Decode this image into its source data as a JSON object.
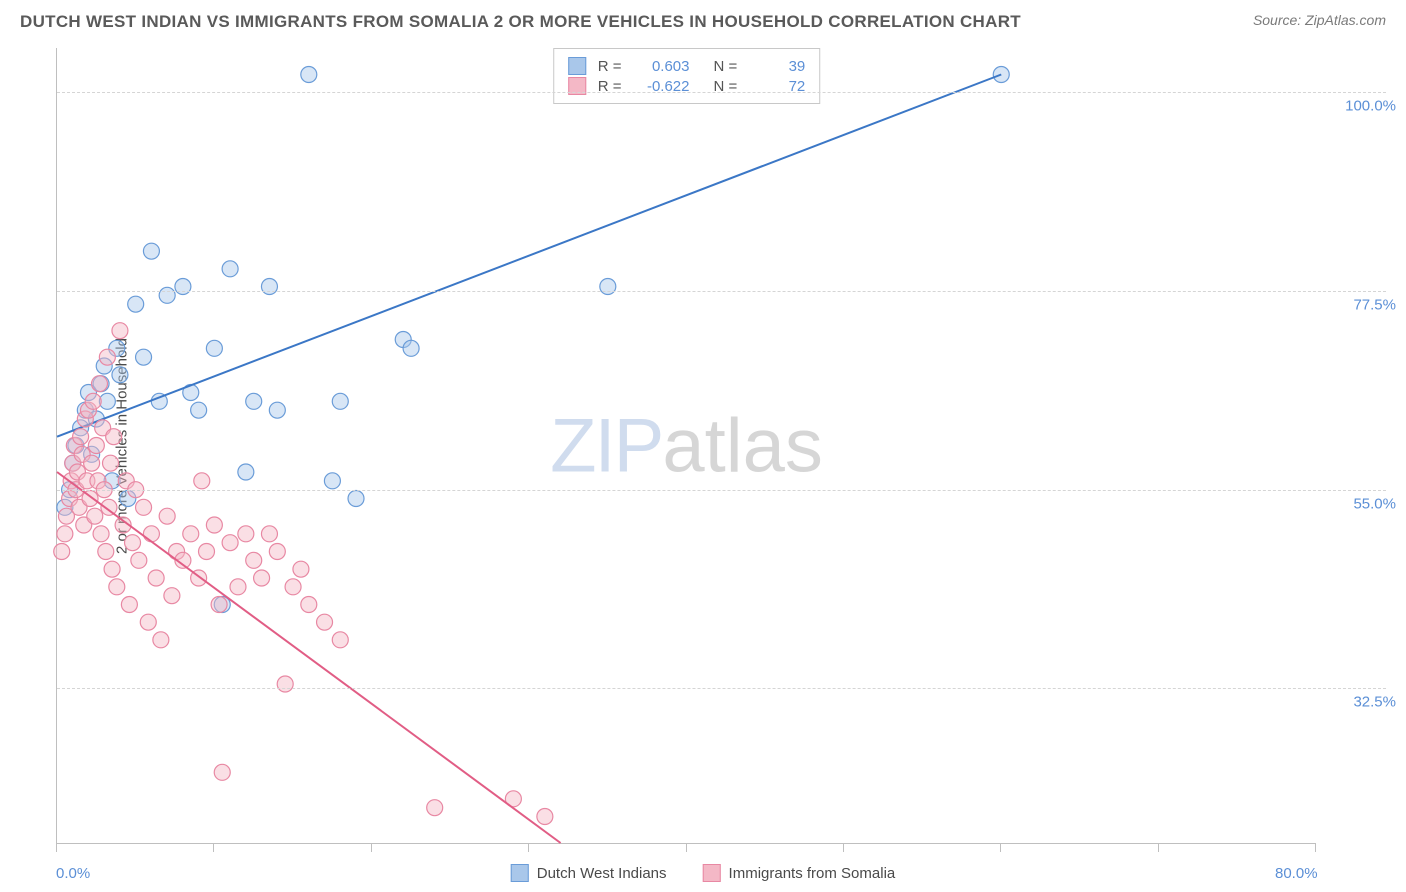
{
  "title": "DUTCH WEST INDIAN VS IMMIGRANTS FROM SOMALIA 2 OR MORE VEHICLES IN HOUSEHOLD CORRELATION CHART",
  "source": "Source: ZipAtlas.com",
  "ylabel": "2 or more Vehicles in Household",
  "watermark": {
    "zip": "ZIP",
    "atlas": "atlas"
  },
  "chart": {
    "type": "scatter",
    "xlim": [
      0,
      80
    ],
    "ylim": [
      15,
      105
    ],
    "background_color": "#ffffff",
    "grid_color": "#d5d5d5",
    "axis_color": "#bfbfbf",
    "y_gridlines": [
      32.5,
      55.0,
      77.5,
      100.0
    ],
    "y_tick_labels": [
      "32.5%",
      "55.0%",
      "77.5%",
      "100.0%"
    ],
    "y_tick_fontsize": 15,
    "y_tick_color": "#5b8fd6",
    "x_ticks": [
      0,
      10,
      20,
      30,
      40,
      50,
      60,
      70,
      80
    ],
    "x_axis_labels": [
      {
        "pos": 0,
        "text": "0.0%"
      },
      {
        "pos": 80,
        "text": "80.0%"
      }
    ],
    "marker_radius": 8,
    "marker_opacity": 0.45,
    "line_width": 2,
    "series": [
      {
        "name": "Dutch West Indians",
        "color_fill": "#a9c7ea",
        "color_stroke": "#6a9cd8",
        "line_color": "#3b77c6",
        "R": "0.603",
        "N": "39",
        "trendline": {
          "x1": 0,
          "y1": 61,
          "x2": 60,
          "y2": 102
        },
        "points": [
          [
            0.5,
            53
          ],
          [
            0.8,
            55
          ],
          [
            1.0,
            58
          ],
          [
            1.2,
            60
          ],
          [
            1.5,
            62
          ],
          [
            1.8,
            64
          ],
          [
            2.0,
            66
          ],
          [
            2.2,
            59
          ],
          [
            2.5,
            63
          ],
          [
            2.8,
            67
          ],
          [
            3.0,
            69
          ],
          [
            3.2,
            65
          ],
          [
            3.5,
            56
          ],
          [
            3.8,
            71
          ],
          [
            4.0,
            68
          ],
          [
            4.5,
            54
          ],
          [
            5.0,
            76
          ],
          [
            5.5,
            70
          ],
          [
            6.0,
            82
          ],
          [
            6.5,
            65
          ],
          [
            7.0,
            77
          ],
          [
            8.0,
            78
          ],
          [
            8.5,
            66
          ],
          [
            9.0,
            64
          ],
          [
            10.0,
            71
          ],
          [
            10.5,
            42
          ],
          [
            11.0,
            80
          ],
          [
            12.0,
            57
          ],
          [
            12.5,
            65
          ],
          [
            13.5,
            78
          ],
          [
            14.0,
            64
          ],
          [
            16.0,
            102
          ],
          [
            17.5,
            56
          ],
          [
            18.0,
            65
          ],
          [
            19.0,
            54
          ],
          [
            22.0,
            72
          ],
          [
            22.5,
            71
          ],
          [
            35.0,
            78
          ],
          [
            60.0,
            102
          ]
        ]
      },
      {
        "name": "Immigrants from Somalia",
        "color_fill": "#f4b8c6",
        "color_stroke": "#e888a3",
        "line_color": "#e15d85",
        "R": "-0.622",
        "N": "72",
        "trendline": {
          "x1": 0,
          "y1": 57,
          "x2": 32,
          "y2": 15
        },
        "points": [
          [
            0.3,
            48
          ],
          [
            0.5,
            50
          ],
          [
            0.6,
            52
          ],
          [
            0.8,
            54
          ],
          [
            0.9,
            56
          ],
          [
            1.0,
            58
          ],
          [
            1.1,
            60
          ],
          [
            1.2,
            55
          ],
          [
            1.3,
            57
          ],
          [
            1.4,
            53
          ],
          [
            1.5,
            61
          ],
          [
            1.6,
            59
          ],
          [
            1.7,
            51
          ],
          [
            1.8,
            63
          ],
          [
            1.9,
            56
          ],
          [
            2.0,
            64
          ],
          [
            2.1,
            54
          ],
          [
            2.2,
            58
          ],
          [
            2.3,
            65
          ],
          [
            2.4,
            52
          ],
          [
            2.5,
            60
          ],
          [
            2.6,
            56
          ],
          [
            2.7,
            67
          ],
          [
            2.8,
            50
          ],
          [
            2.9,
            62
          ],
          [
            3.0,
            55
          ],
          [
            3.1,
            48
          ],
          [
            3.2,
            70
          ],
          [
            3.3,
            53
          ],
          [
            3.4,
            58
          ],
          [
            3.5,
            46
          ],
          [
            3.6,
            61
          ],
          [
            3.8,
            44
          ],
          [
            4.0,
            73
          ],
          [
            4.2,
            51
          ],
          [
            4.4,
            56
          ],
          [
            4.6,
            42
          ],
          [
            4.8,
            49
          ],
          [
            5.0,
            55
          ],
          [
            5.2,
            47
          ],
          [
            5.5,
            53
          ],
          [
            5.8,
            40
          ],
          [
            6.0,
            50
          ],
          [
            6.3,
            45
          ],
          [
            6.6,
            38
          ],
          [
            7.0,
            52
          ],
          [
            7.3,
            43
          ],
          [
            7.6,
            48
          ],
          [
            8.0,
            47
          ],
          [
            8.5,
            50
          ],
          [
            9.0,
            45
          ],
          [
            9.2,
            56
          ],
          [
            9.5,
            48
          ],
          [
            10.0,
            51
          ],
          [
            10.3,
            42
          ],
          [
            10.5,
            23
          ],
          [
            11.0,
            49
          ],
          [
            11.5,
            44
          ],
          [
            12.0,
            50
          ],
          [
            12.5,
            47
          ],
          [
            13.0,
            45
          ],
          [
            13.5,
            50
          ],
          [
            14.0,
            48
          ],
          [
            14.5,
            33
          ],
          [
            15.0,
            44
          ],
          [
            15.5,
            46
          ],
          [
            16.0,
            42
          ],
          [
            17.0,
            40
          ],
          [
            18.0,
            38
          ],
          [
            24.0,
            19
          ],
          [
            29.0,
            20
          ],
          [
            31.0,
            18
          ]
        ]
      }
    ]
  },
  "legend_bottom": [
    {
      "label": "Dutch West Indians",
      "fill": "#a9c7ea",
      "stroke": "#6a9cd8"
    },
    {
      "label": "Immigrants from Somalia",
      "fill": "#f4b8c6",
      "stroke": "#e888a3"
    }
  ]
}
